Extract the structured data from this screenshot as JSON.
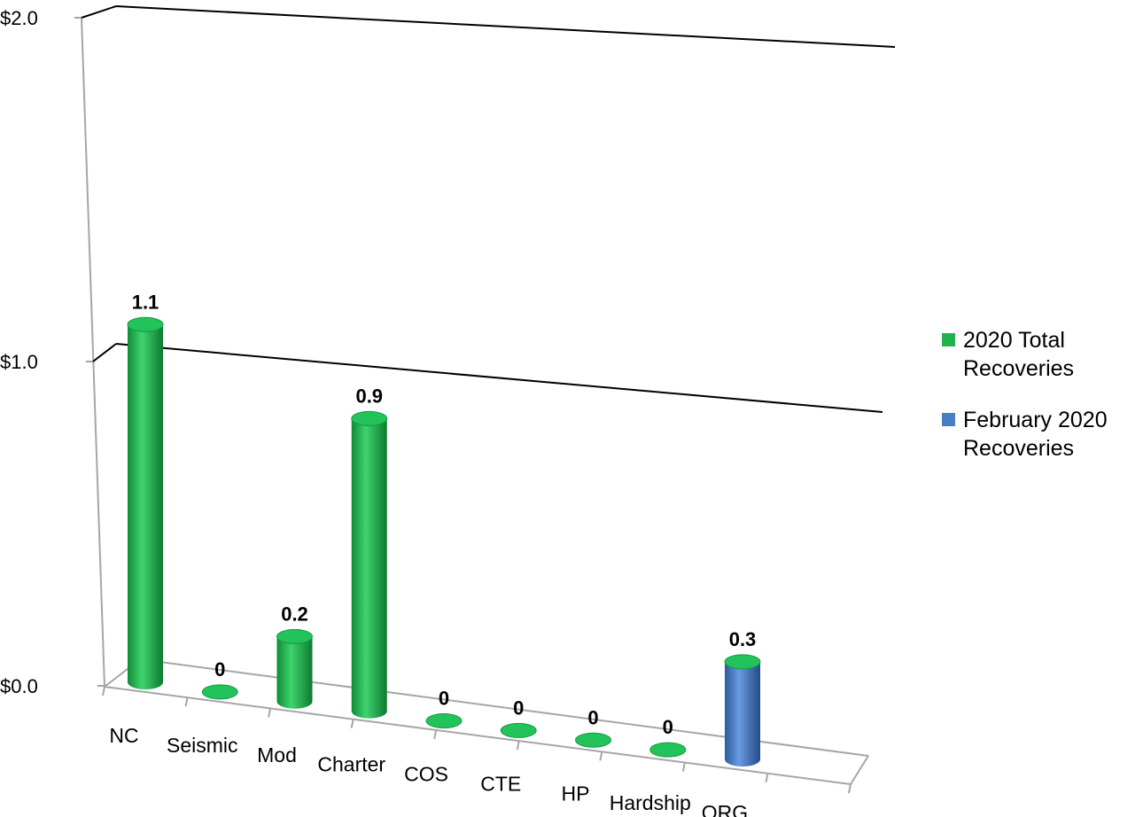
{
  "chart_data": {
    "type": "bar",
    "style": "3d-cylinder",
    "categories": [
      "NC",
      "Seismic",
      "Mod",
      "Charter",
      "COS",
      "CTE",
      "HP",
      "Hardship",
      "ORG"
    ],
    "series": [
      {
        "name": "2020 Total Recoveries",
        "color": "#1fb14f",
        "values": [
          1.1,
          0,
          0.2,
          0.9,
          0,
          0,
          0,
          0,
          null
        ],
        "labels": [
          "1.1",
          "0",
          "0.2",
          "0.9",
          "0",
          "0",
          "0",
          "0",
          ""
        ]
      },
      {
        "name": "February 2020 Recoveries",
        "color": "#4a7dc4",
        "values": [
          null,
          null,
          null,
          null,
          null,
          null,
          null,
          null,
          0.3
        ],
        "labels": [
          "",
          "",
          "",
          "",
          "",
          "",
          "",
          "",
          "0.3"
        ]
      }
    ],
    "y_ticks": [
      "$0.0",
      "$1.0",
      "$2.0"
    ],
    "ylim": [
      0,
      2
    ],
    "title": "",
    "xlabel": "",
    "ylabel": "",
    "legend_position": "right",
    "grid": true
  }
}
